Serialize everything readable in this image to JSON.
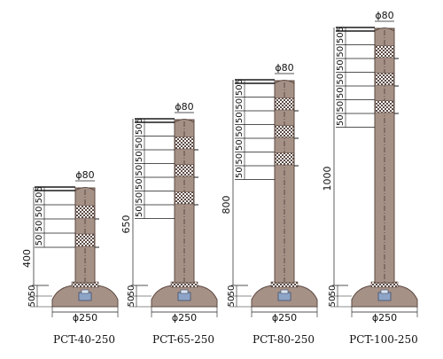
{
  "posts": [
    {
      "model": "PCT-40-250",
      "height_label": "400",
      "top_diameter": "ϕ80",
      "base_diameter": "ϕ250",
      "segment_labels": [
        "5",
        "50",
        "50",
        "50",
        "50"
      ],
      "base_labels": [
        "50",
        "50"
      ],
      "reflective_bands": 2
    },
    {
      "model": "PCT-65-250",
      "height_label": "650",
      "top_diameter": "ϕ80",
      "base_diameter": "ϕ250",
      "segment_labels": [
        "5",
        "50",
        "50",
        "50",
        "50",
        "50",
        "50",
        "50"
      ],
      "base_labels": [
        "50",
        "50"
      ],
      "reflective_bands": 3
    },
    {
      "model": "PCT-80-250",
      "height_label": "800",
      "top_diameter": "ϕ80",
      "base_diameter": "ϕ250",
      "segment_labels": [
        "5",
        "50",
        "50",
        "50",
        "50",
        "50",
        "50",
        "50"
      ],
      "base_labels": [
        "50",
        "50"
      ],
      "reflective_bands": 3
    },
    {
      "model": "PCT-100-250",
      "height_label": "1000",
      "top_diameter": "ϕ80",
      "base_diameter": "ϕ250",
      "segment_labels": [
        "5",
        "50",
        "50",
        "50",
        "50",
        "50",
        "50",
        "50"
      ],
      "base_labels": [
        "50",
        "50"
      ],
      "reflective_bands": 3
    }
  ],
  "colors": {
    "post": "#a69187",
    "post_edge": "#5d4a42",
    "band_check_dark": "#5b4a44",
    "band_check_light": "#ffffff",
    "fitting": "#8ea4c6",
    "line": "#1a1a1a"
  }
}
